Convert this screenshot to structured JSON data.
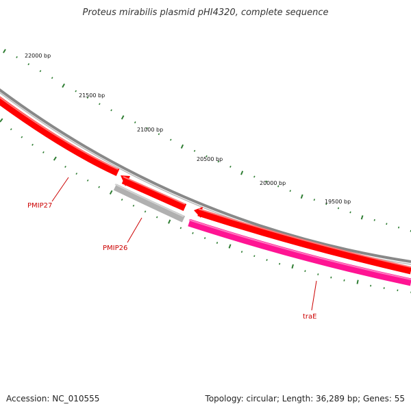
{
  "title": "Proteus mirabilis plasmid pHI4320, complete sequence",
  "footer": {
    "accession": "Accession: NC_010555",
    "summary": "Topology: circular; Length: 36,289 bp; Genes: 55"
  },
  "scale_labels": [
    "22000 bp",
    "21500 bp",
    "21000 bp",
    "20500 bp",
    "20000 bp",
    "19500 bp"
  ],
  "genes": [
    {
      "name": "PMIP27",
      "strand": "forward",
      "color": "#ff0000"
    },
    {
      "name": "PMIP26",
      "strand": "reverse",
      "color": "#b0b0b0"
    },
    {
      "name": "traE",
      "strand": "reverse",
      "color": "#ff1493"
    }
  ],
  "colors": {
    "backbone": "#888888",
    "forward_gene": "#ff0000",
    "hypothetical_gene": "#b0b0b0",
    "reverse_gene": "#ff1493",
    "tick": "#2e7d32",
    "label_line": "#cc0000"
  }
}
